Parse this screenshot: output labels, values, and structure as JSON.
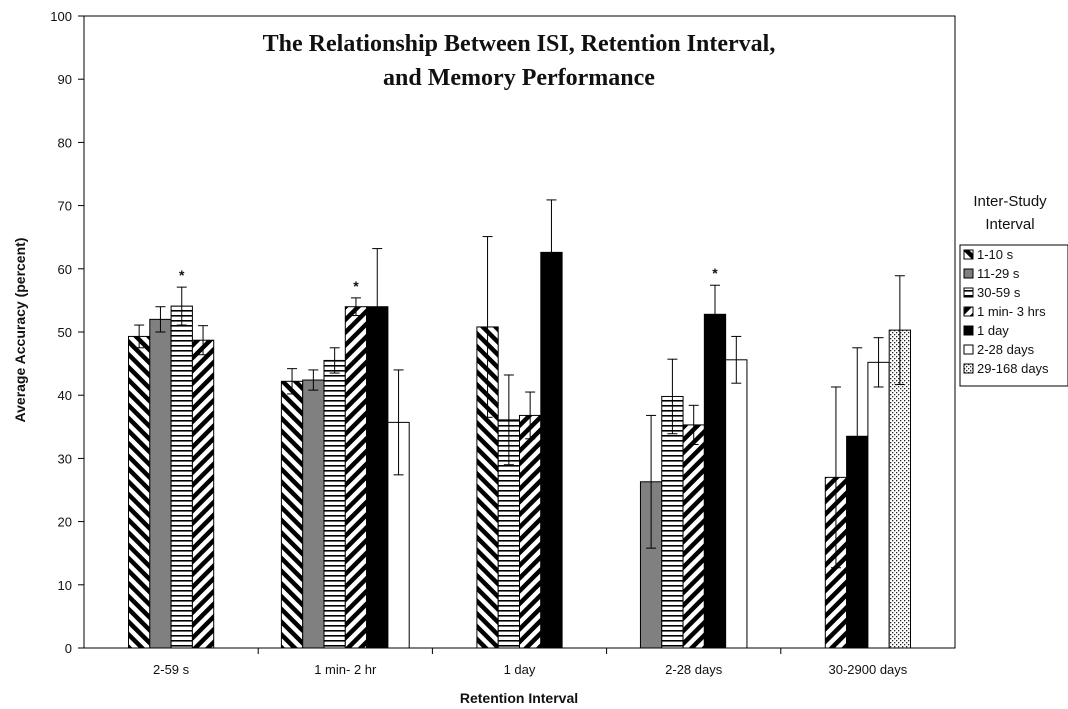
{
  "chart_data": {
    "type": "bar",
    "title_lines": [
      "The Relationship Between ISI, Retention Interval,",
      "and Memory Performance"
    ],
    "xlabel": "Retention Interval",
    "ylabel": "Average Accuracy (percent)",
    "ylim": [
      0,
      100
    ],
    "y_ticks": [
      "0",
      "10",
      "20",
      "30",
      "40",
      "50",
      "60",
      "70",
      "80",
      "90",
      "100"
    ],
    "categories": [
      "2-59 s",
      "1 min- 2 hr",
      "1 day",
      "2-28 days",
      "30-2900 days"
    ],
    "legend": {
      "title_lines": [
        "Inter-Study",
        "Interval"
      ],
      "placement": "right"
    },
    "series": [
      {
        "name": "1-10 s",
        "pattern": "diag-back",
        "values": [
          49.3,
          42.2,
          50.8,
          null,
          null
        ],
        "errors": [
          1.8,
          2.0,
          14.3,
          null,
          null
        ],
        "significant": [
          false,
          false,
          false,
          false,
          false
        ]
      },
      {
        "name": "11-29 s",
        "pattern": "gray",
        "values": [
          52.0,
          42.4,
          null,
          26.3,
          null
        ],
        "errors": [
          2.0,
          1.6,
          null,
          10.5,
          null
        ],
        "significant": [
          false,
          false,
          false,
          false,
          false
        ]
      },
      {
        "name": "30-59 s",
        "pattern": "hlines",
        "values": [
          54.1,
          45.5,
          36.1,
          39.8,
          null
        ],
        "errors": [
          3.0,
          2.0,
          7.1,
          5.9,
          null
        ],
        "significant": [
          true,
          false,
          false,
          false,
          false
        ]
      },
      {
        "name": "1 min- 3 hrs",
        "pattern": "diag-fwd",
        "values": [
          48.7,
          54.0,
          36.8,
          35.3,
          27.0
        ],
        "errors": [
          2.3,
          1.4,
          3.7,
          3.1,
          14.3
        ],
        "significant": [
          false,
          true,
          false,
          false,
          false
        ]
      },
      {
        "name": "1 day",
        "pattern": "black",
        "values": [
          null,
          54.0,
          62.6,
          52.8,
          33.5
        ],
        "errors": [
          null,
          9.2,
          8.3,
          4.6,
          14.0
        ],
        "significant": [
          false,
          false,
          false,
          true,
          false
        ]
      },
      {
        "name": "2-28 days",
        "pattern": "white",
        "values": [
          null,
          35.7,
          null,
          45.6,
          45.2
        ],
        "errors": [
          null,
          8.3,
          null,
          3.7,
          3.9
        ],
        "significant": [
          false,
          false,
          false,
          false,
          false
        ]
      },
      {
        "name": "29-168 days",
        "pattern": "dots",
        "values": [
          null,
          null,
          null,
          null,
          50.3
        ],
        "errors": [
          null,
          null,
          null,
          null,
          8.6
        ],
        "significant": [
          false,
          false,
          false,
          false,
          false
        ]
      }
    ],
    "significance_marker": "*",
    "grid": false
  }
}
